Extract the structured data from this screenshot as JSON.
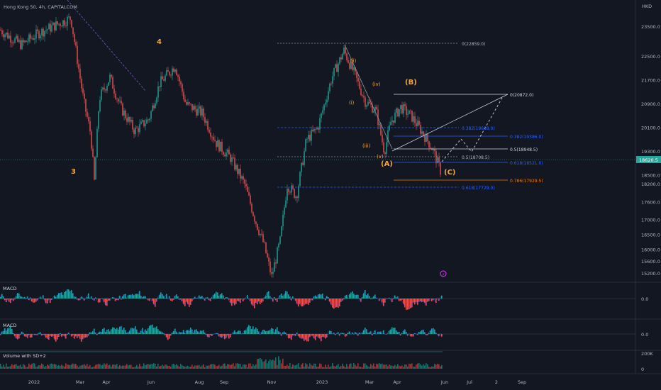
{
  "header": {
    "symbol_label": "Hong Kong 50, 4h, CAPITALCOM",
    "currency": "HKD"
  },
  "price_axis": {
    "ticks": [
      23500,
      22500,
      21700,
      20900,
      20100,
      19300,
      18500,
      18200,
      17600,
      17000,
      16500,
      16000,
      15600,
      15200
    ]
  },
  "last_price_tag": "18620.5",
  "time_axis": {
    "labels": [
      "2022",
      "Mar",
      "Apr",
      "Jun",
      "Aug",
      "Sep",
      "Nov",
      "2023",
      "Mar",
      "Apr",
      "Jun",
      "Jul",
      "2",
      "Sep"
    ]
  },
  "waves": {
    "major": [
      "3",
      "4"
    ],
    "minor": [
      "(ii)",
      "(iv)",
      "(i)",
      "(iii)",
      "(v)"
    ],
    "abc": [
      "(A)",
      "(B)",
      "(C)"
    ]
  },
  "fib_levels": {
    "left": [
      "0(22859.0)",
      "0.382(19688.0)",
      "0.5(18708.5)",
      "0.618(17729.0)"
    ],
    "right": [
      "0(20872.0)",
      "0.382(19386.0)",
      "0.5(18948.5)",
      "0.618(18521.0)",
      "0.786(17929.5)"
    ]
  },
  "macd1": {
    "label": "MACD",
    "zero": "0.0"
  },
  "macd2": {
    "label": "MACD",
    "zero": "0.0"
  },
  "volume": {
    "label": "Volume with SD+2",
    "ticks": [
      "200K",
      "0"
    ]
  },
  "colors": {
    "background": "#131722",
    "up": "#26a69a",
    "down": "#ef5350",
    "wave_orange": "#f6a43b",
    "fib_blue": "#2962ff",
    "fib_white": "#d1d4dc",
    "fib_orange": "#f57c00",
    "price_tag": "#26a69a",
    "trend_purple": "#7e57c2"
  },
  "chart_data": {
    "type": "candlestick",
    "title": "Hong Kong 50, 4h, CAPITALCOM",
    "ylabel": "HKD",
    "ylim": [
      15000,
      24000
    ],
    "x_labels": [
      "2022",
      "Mar",
      "Apr",
      "Jun",
      "Aug",
      "Sep",
      "Nov",
      "2023",
      "Mar",
      "Apr",
      "Jun",
      "Jul",
      "2",
      "Sep"
    ],
    "path_anchors": [
      {
        "x": "2022-01",
        "y": 23400
      },
      {
        "x": "2022-02",
        "y": 23800
      },
      {
        "x": "2022-03",
        "y": 18300
      },
      {
        "x": "2022-04",
        "y": 21800
      },
      {
        "x": "2022-05",
        "y": 19900
      },
      {
        "x": "2022-06",
        "y": 22200
      },
      {
        "x": "2022-07",
        "y": 20600
      },
      {
        "x": "2022-08",
        "y": 19600
      },
      {
        "x": "2022-09",
        "y": 18000
      },
      {
        "x": "2022-10",
        "y": 16400
      },
      {
        "x": "2022-11",
        "y": 15100
      },
      {
        "x": "2022-12",
        "y": 19600
      },
      {
        "x": "2023-01",
        "y": 21800
      },
      {
        "x": "2023-01-27",
        "y": 22700
      },
      {
        "x": "2023-02",
        "y": 21000
      },
      {
        "x": "2023-03",
        "y": 19300
      },
      {
        "x": "2023-04",
        "y": 20800
      },
      {
        "x": "2023-05",
        "y": 19800
      },
      {
        "x": "2023-05-31",
        "y": 18600
      }
    ],
    "last_price": 18620.5
  }
}
